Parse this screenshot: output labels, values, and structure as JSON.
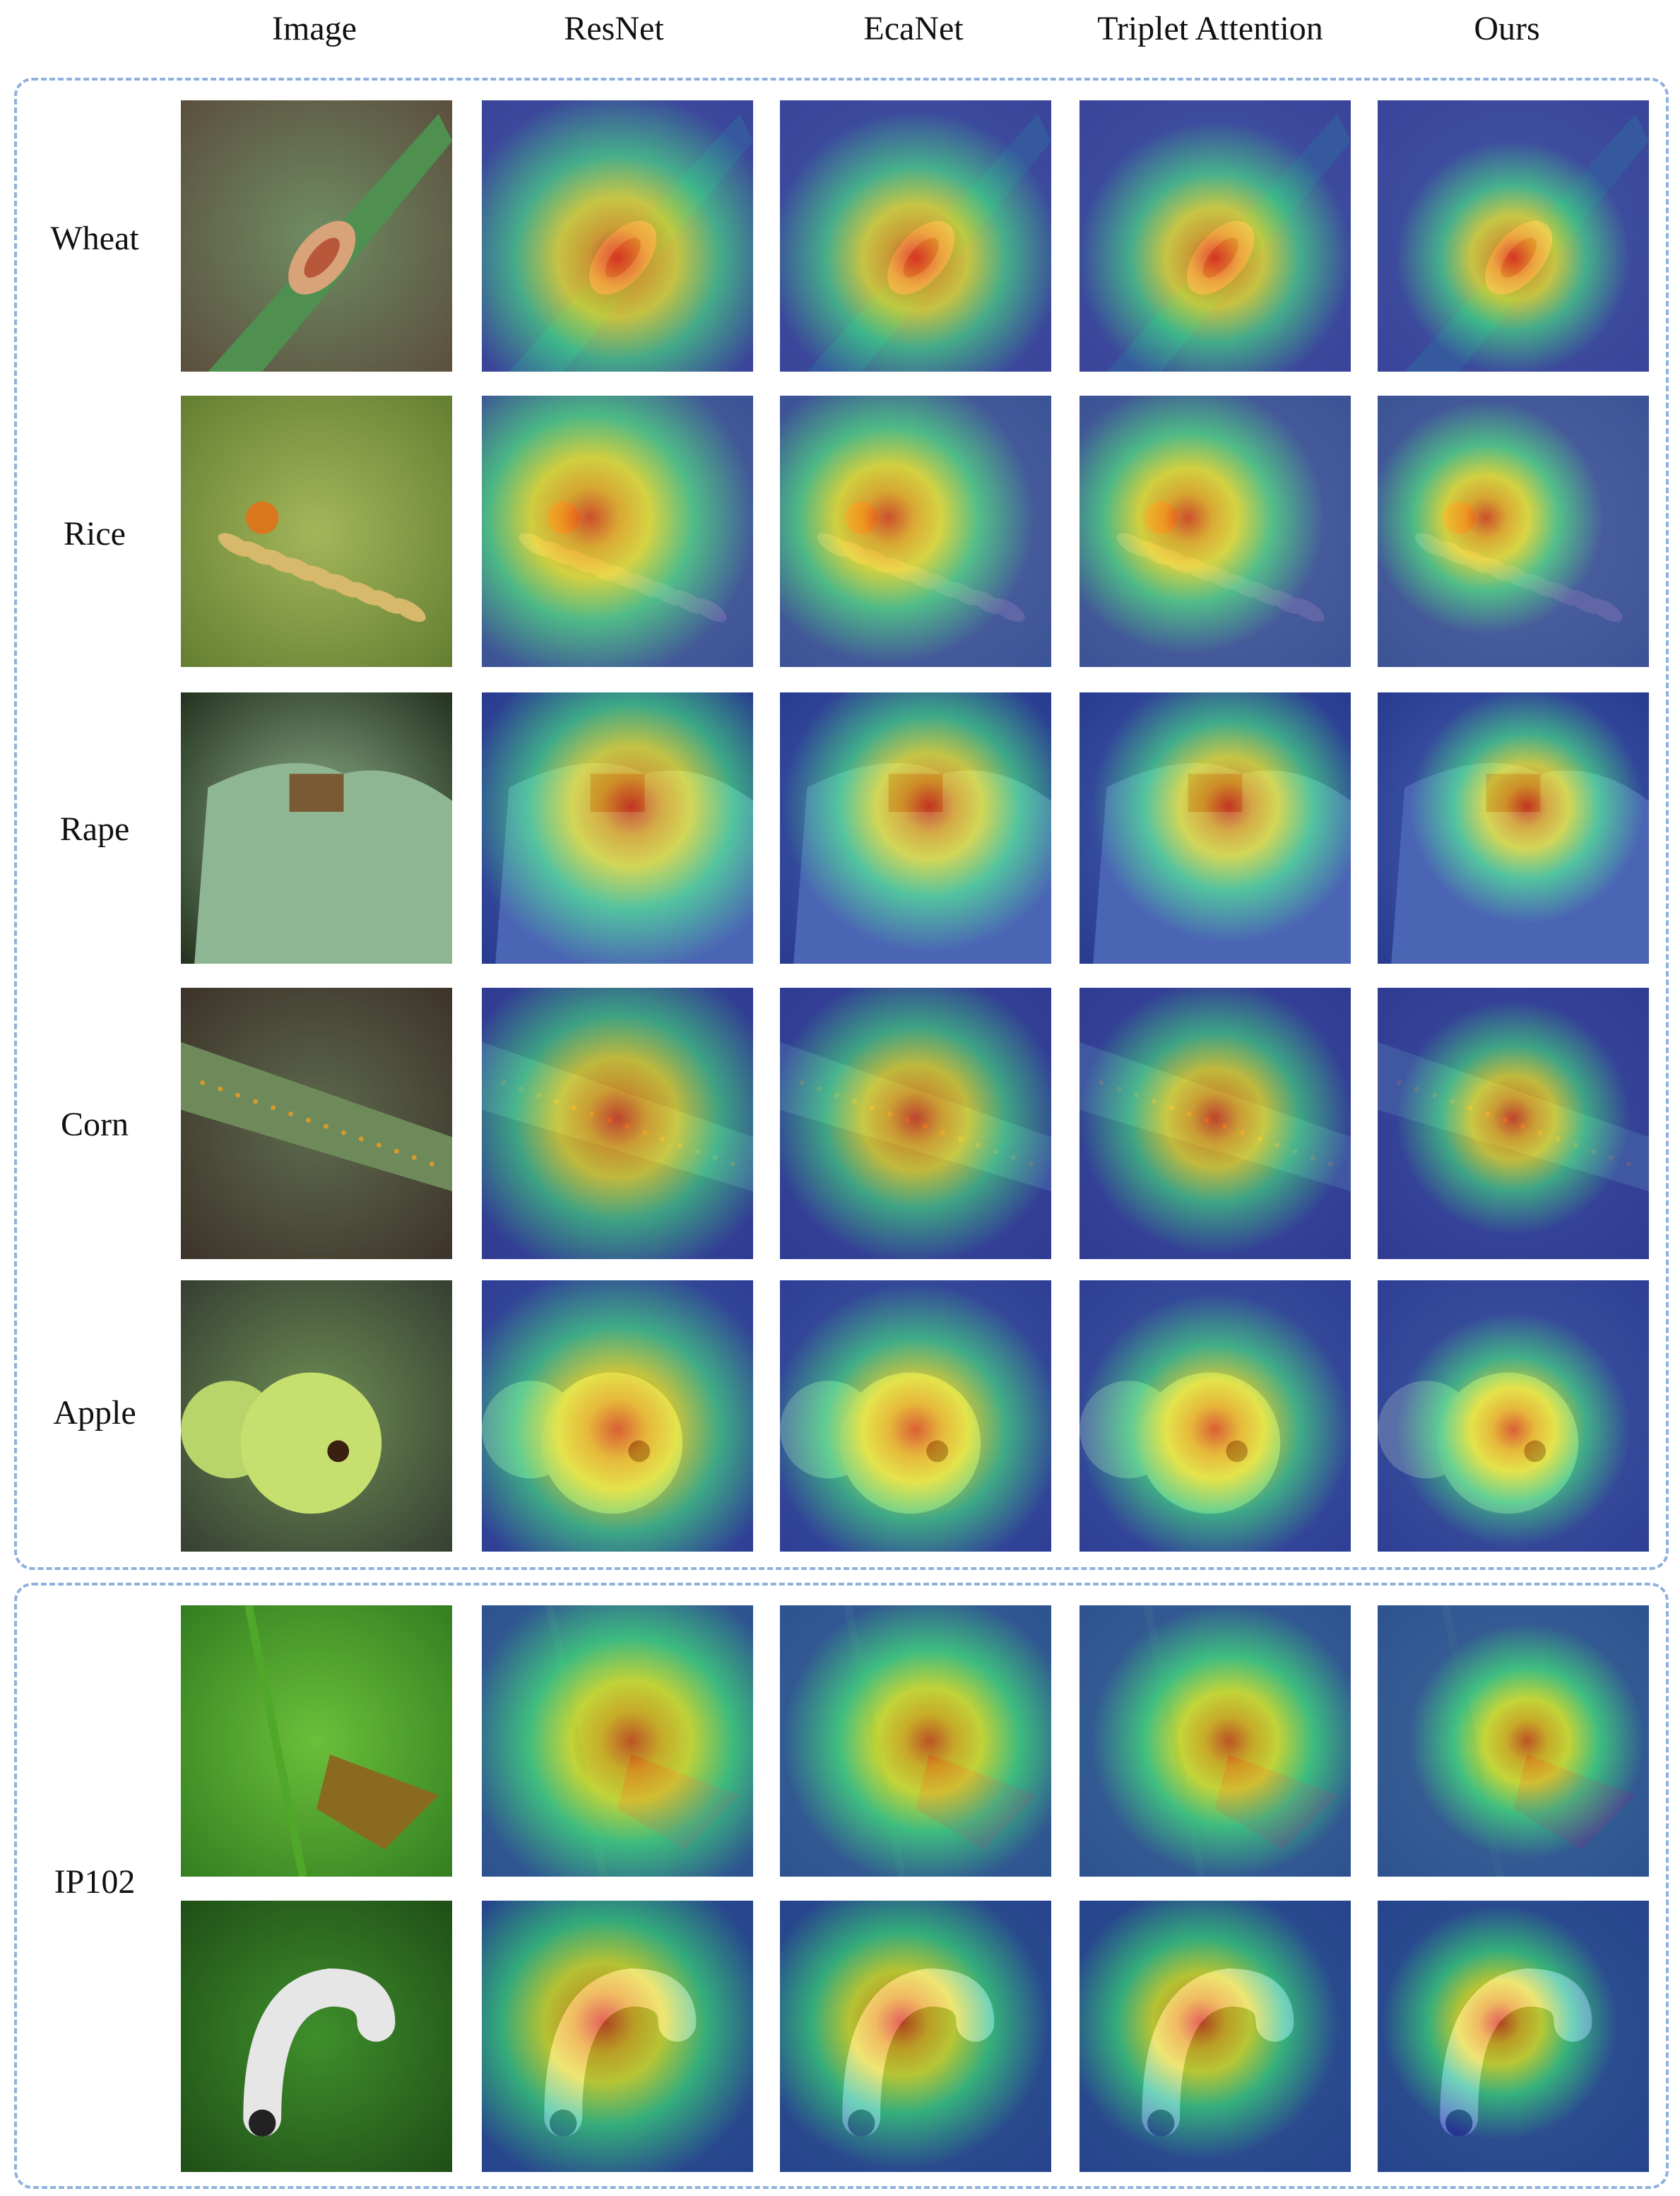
{
  "figure": {
    "column_headers": [
      "Image",
      "ResNet",
      "EcaNet",
      "Triplet Attention",
      "Ours"
    ],
    "groups": [
      {
        "id": "crops",
        "rows": [
          {
            "label": "Wheat",
            "subject": "leaf-lesion"
          },
          {
            "label": "Rice",
            "subject": "rice-panicle"
          },
          {
            "label": "Rape",
            "subject": "rape-leaf"
          },
          {
            "label": "Corn",
            "subject": "corn-leaf"
          },
          {
            "label": "Apple",
            "subject": "apple-fruit"
          }
        ]
      },
      {
        "id": "ip102",
        "label": "IP102",
        "rows": [
          {
            "subject": "moth-on-leaf"
          },
          {
            "subject": "larva-on-leaf"
          }
        ]
      }
    ],
    "colors": {
      "frame_dash": "#8fb2dd",
      "heat_hot": "#e3241a",
      "heat_warm": "#f5a623",
      "heat_mid": "#f2e53b",
      "heat_cool": "#36c9a6",
      "heat_cold": "#2a3fc4"
    }
  }
}
